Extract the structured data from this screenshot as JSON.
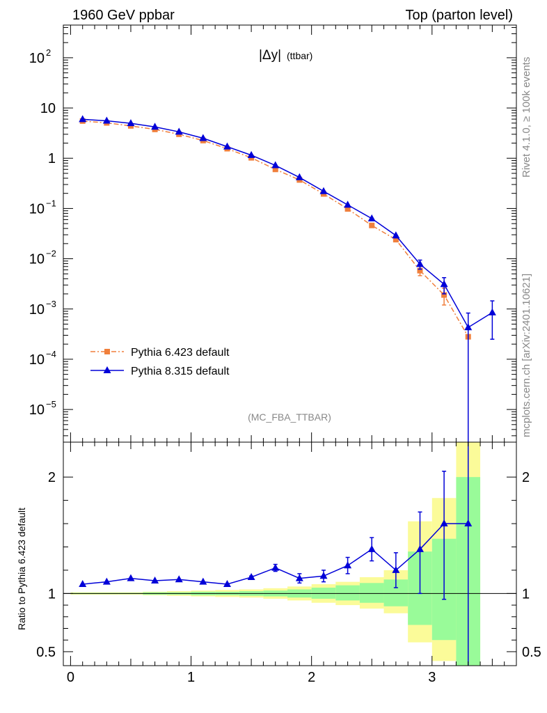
{
  "header": {
    "left": "1960 GeV ppbar",
    "right": "Top (parton level)"
  },
  "side": {
    "top": "Rivet 4.1.0, ≥ 100k events",
    "bottom": "mcplots.cern.ch [arXiv:2401.10621]"
  },
  "plot": {
    "title_main": "|Δy|",
    "title_sub": "(ttbar)",
    "analysis": "(MC_FBA_TTBAR)",
    "ratio_ylabel": "Ratio to Pythia 6.423 default"
  },
  "colors": {
    "ref": "#f07f3c",
    "mc": "#0000d8",
    "band_yellow": "#fbfb99",
    "band_green": "#99fb99"
  },
  "chart_data": {
    "type": "line",
    "xlim": [
      -0.06,
      3.7
    ],
    "main_ylim_log10": [
      -5.65,
      2.65
    ],
    "ratio_ylim": [
      0.38,
      2.3
    ],
    "main_yticks": [
      {
        "label": "10",
        "sup": "2",
        "v": 100
      },
      {
        "label": "10",
        "sup": "",
        "v": 10
      },
      {
        "label": "1",
        "sup": "",
        "v": 1
      },
      {
        "label": "10",
        "sup": "−1",
        "v": 0.1
      },
      {
        "label": "10",
        "sup": "−2",
        "v": 0.01
      },
      {
        "label": "10",
        "sup": "−3",
        "v": 0.001
      },
      {
        "label": "10",
        "sup": "−4",
        "v": 0.0001
      },
      {
        "label": "10",
        "sup": "−5",
        "v": 1e-05
      }
    ],
    "ratio_yticks": [
      {
        "label": "2",
        "v": 2
      },
      {
        "label": "1",
        "v": 1
      },
      {
        "label": "0.5",
        "v": 0.5
      }
    ],
    "xticks": [
      {
        "label": "0",
        "v": 0
      },
      {
        "label": "1",
        "v": 1
      },
      {
        "label": "2",
        "v": 2
      },
      {
        "label": "3",
        "v": 3
      }
    ],
    "x": [
      0.1,
      0.3,
      0.5,
      0.7,
      0.9,
      1.1,
      1.3,
      1.5,
      1.7,
      1.9,
      2.1,
      2.3,
      2.5,
      2.7,
      2.9,
      3.1,
      3.3,
      3.5
    ],
    "series": [
      {
        "name": "Pythia 6.423 default",
        "values": [
          5.5,
          5.05,
          4.4,
          3.75,
          3.0,
          2.25,
          1.55,
          1.02,
          0.6,
          0.37,
          0.195,
          0.098,
          0.046,
          0.024,
          0.0058,
          0.0019,
          0.00028,
          null
        ],
        "err_lo": [
          0,
          0,
          0,
          0,
          0,
          0,
          0,
          0,
          0,
          0,
          0,
          0,
          0,
          0,
          0.0012,
          0.0007,
          0,
          null
        ],
        "err_hi": [
          0,
          0,
          0,
          0,
          0,
          0,
          0,
          0,
          0,
          0,
          0,
          0,
          0,
          0,
          0.0012,
          0.0007,
          0,
          null
        ]
      },
      {
        "name": "Pythia 8.315 default",
        "values": [
          5.95,
          5.55,
          4.95,
          4.2,
          3.35,
          2.5,
          1.7,
          1.15,
          0.72,
          0.415,
          0.22,
          0.118,
          0.063,
          0.029,
          0.0078,
          0.0031,
          0.00043,
          0.00085
        ],
        "err_lo": [
          0,
          0,
          0,
          0,
          0,
          0,
          0,
          0,
          0,
          0,
          0,
          0,
          0,
          0.003,
          0.0016,
          0.0011,
          0.00043,
          0.0006
        ],
        "err_hi": [
          0,
          0,
          0,
          0,
          0,
          0,
          0,
          0,
          0,
          0,
          0,
          0,
          0,
          0,
          0.0016,
          0.0011,
          0.0004,
          0.0006
        ]
      }
    ],
    "ratio": {
      "values": [
        1.08,
        1.1,
        1.13,
        1.11,
        1.12,
        1.1,
        1.08,
        1.14,
        1.22,
        1.13,
        1.15,
        1.24,
        1.38,
        1.2,
        1.38,
        1.6,
        1.6
      ],
      "err_lo": [
        0,
        0,
        0,
        0,
        0,
        0,
        0,
        0.01,
        0.03,
        0.04,
        0.05,
        0.07,
        0.1,
        0.15,
        0.38,
        0.65,
        1.6
      ],
      "err_hi": [
        0,
        0,
        0,
        0,
        0,
        0,
        0,
        0.01,
        0.03,
        0.04,
        0.05,
        0.07,
        0.1,
        0.15,
        0.32,
        0.45,
        0.7
      ]
    },
    "bands": {
      "x_edges": [
        0.0,
        0.2,
        0.4,
        0.6,
        0.8,
        1.0,
        1.2,
        1.4,
        1.6,
        1.8,
        2.0,
        2.2,
        2.4,
        2.6,
        2.8,
        3.0,
        3.2,
        3.4
      ],
      "yellow_lo": [
        0.99,
        0.99,
        0.99,
        0.985,
        0.98,
        0.975,
        0.97,
        0.965,
        0.955,
        0.94,
        0.92,
        0.9,
        0.87,
        0.83,
        0.58,
        0.42,
        0.3
      ],
      "yellow_hi": [
        1.01,
        1.01,
        1.01,
        1.015,
        1.02,
        1.025,
        1.03,
        1.035,
        1.045,
        1.06,
        1.08,
        1.1,
        1.14,
        1.2,
        1.62,
        1.82,
        2.5
      ],
      "green_lo": [
        0.995,
        0.995,
        0.995,
        0.99,
        0.99,
        0.985,
        0.985,
        0.98,
        0.975,
        0.965,
        0.955,
        0.94,
        0.92,
        0.89,
        0.73,
        0.6,
        0.3
      ],
      "green_hi": [
        1.005,
        1.005,
        1.005,
        1.01,
        1.01,
        1.015,
        1.015,
        1.02,
        1.025,
        1.035,
        1.05,
        1.07,
        1.09,
        1.12,
        1.36,
        1.47,
        2.0
      ]
    }
  }
}
